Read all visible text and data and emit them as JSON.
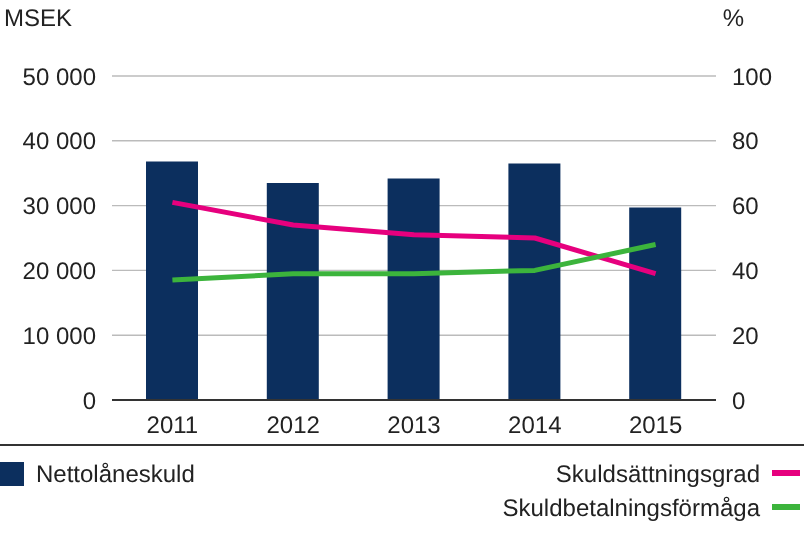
{
  "chart_data": {
    "type": "bar",
    "ylabel": "MSEK",
    "y2label": "%",
    "categories": [
      "2011",
      "2012",
      "2013",
      "2014",
      "2015"
    ],
    "series": [
      {
        "name": "Nettolåneskuld",
        "color": "#0c2f5e",
        "values": [
          36800,
          33500,
          34200,
          36500,
          29700
        ]
      },
      {
        "name": "Skuldsättningsgrad",
        "type": "line",
        "axis": "y2",
        "color": "#e6007e",
        "values": [
          61,
          54,
          51,
          50,
          39
        ]
      },
      {
        "name": "Skuldbetalningsförmåga",
        "type": "line",
        "axis": "y2",
        "color": "#3cb43c",
        "values": [
          37,
          39,
          39,
          40,
          48
        ]
      }
    ],
    "ylim": [
      0,
      50000
    ],
    "yticks": [
      0,
      {
        "value": 10000,
        "label": "10 000"
      },
      {
        "value": 20000,
        "label": "20 000"
      },
      {
        "value": 30000,
        "label": "30 000"
      },
      {
        "value": 40000,
        "label": "40 000"
      },
      {
        "value": 50000,
        "label": "50 000"
      }
    ],
    "y2lim": [
      0,
      100
    ],
    "y2ticks": [
      0,
      20,
      40,
      60,
      80,
      100
    ],
    "grid": "y",
    "legend": "bottom",
    "marker": "none",
    "line_style": "solid"
  }
}
